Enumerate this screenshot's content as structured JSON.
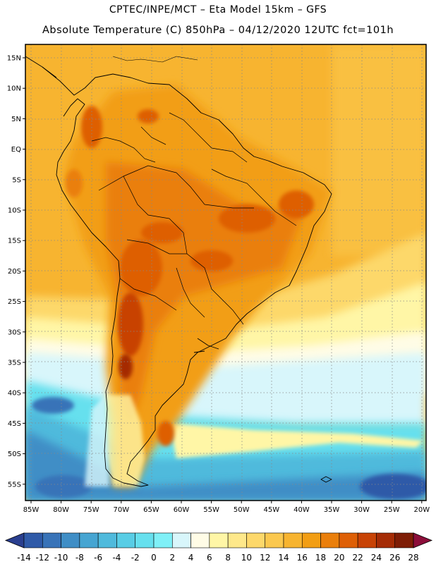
{
  "header": {
    "line1": "CPTEC/INPE/MCT –  Eta Model 15km – GFS",
    "line2": "Absolute Temperature (C) 850hPa – 04/12/2020 12UTC fct=101h"
  },
  "map": {
    "lat_labels": [
      "15N",
      "10N",
      "5N",
      "EQ",
      "5S",
      "10S",
      "15S",
      "20S",
      "25S",
      "30S",
      "35S",
      "40S",
      "45S",
      "50S",
      "55S"
    ],
    "lon_labels": [
      "85W",
      "80W",
      "75W",
      "70W",
      "65W",
      "60W",
      "55W",
      "50W",
      "45W",
      "40W",
      "35W",
      "30W",
      "25W",
      "20W"
    ],
    "lat_range": [
      15,
      -55
    ],
    "lon_range": [
      -85,
      -20
    ],
    "gridlines": true
  },
  "colorbar": {
    "levels": [
      "-14",
      "-12",
      "-10",
      "-8",
      "-6",
      "-4",
      "-2",
      "0",
      "2",
      "4",
      "6",
      "8",
      "10",
      "12",
      "14",
      "16",
      "18",
      "20",
      "22",
      "24",
      "26",
      "28"
    ],
    "colors": [
      "#2a3f8f",
      "#2f5aa8",
      "#3873b8",
      "#3f8ec6",
      "#46a5d2",
      "#4fbadc",
      "#58cde5",
      "#66e0ee",
      "#7ff0f7",
      "#d8f6fb",
      "#fffce6",
      "#fff6a6",
      "#fee88a",
      "#fdd86a",
      "#fbc84e",
      "#f7b430",
      "#f29e14",
      "#ea7f0c",
      "#de5f06",
      "#c84306",
      "#a52c06",
      "#7e1d06",
      "#8c0e3a"
    ]
  }
}
